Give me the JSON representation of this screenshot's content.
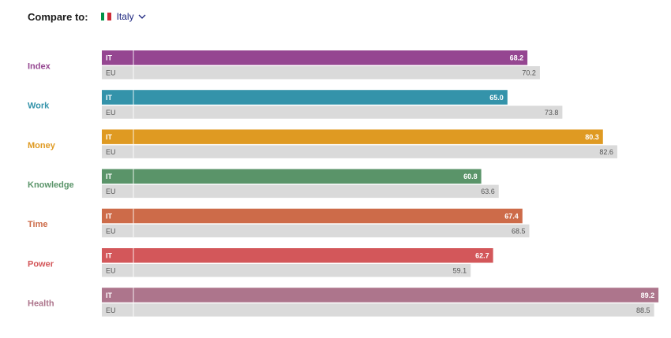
{
  "header": {
    "compare_label": "Compare to:",
    "country": "Italy",
    "flag_colors": [
      "#009246",
      "#ffffff",
      "#ce2b37"
    ]
  },
  "chart_data": {
    "type": "bar",
    "orientation": "horizontal",
    "primary_code": "IT",
    "secondary_code": "EU",
    "xlim": [
      0,
      100
    ],
    "secondary_color": "#dadada",
    "categories": [
      "Index",
      "Work",
      "Money",
      "Knowledge",
      "Time",
      "Power",
      "Health"
    ],
    "category_colors": [
      "#954691",
      "#3493aa",
      "#df9a22",
      "#5a9469",
      "#cd6b49",
      "#d3575a",
      "#ad758c"
    ],
    "series": [
      {
        "name": "IT",
        "values": [
          68.2,
          65.0,
          80.3,
          60.8,
          67.4,
          62.7,
          89.2
        ]
      },
      {
        "name": "EU",
        "values": [
          70.2,
          73.8,
          82.6,
          63.6,
          68.5,
          59.1,
          88.5
        ]
      }
    ]
  }
}
